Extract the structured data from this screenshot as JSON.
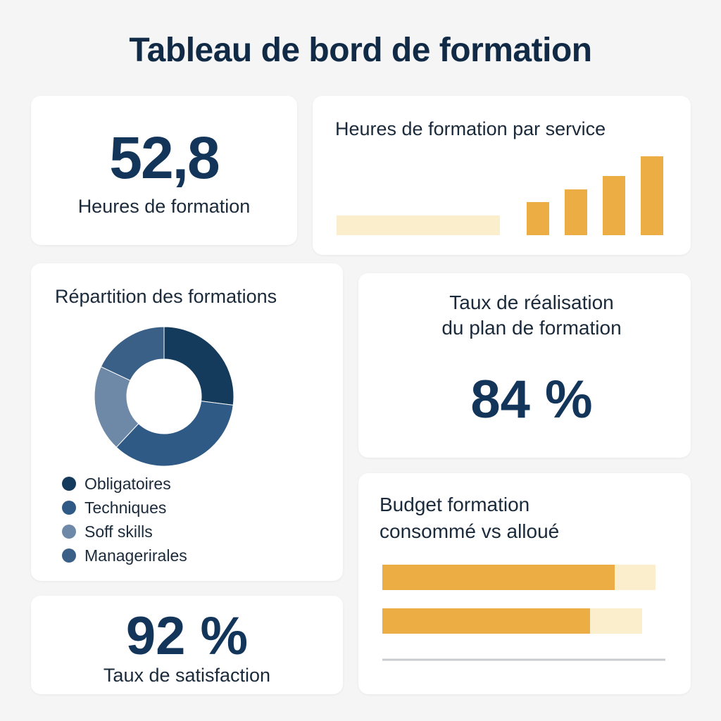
{
  "page": {
    "title": "Tableau de bord de formation"
  },
  "kpi_hours": {
    "value": "52,8",
    "label": "Heures de formation"
  },
  "kpi_completion": {
    "label_line1": "Taux de réalisation",
    "label_line2": "du plan de formation",
    "value": "84 %"
  },
  "kpi_satisfaction": {
    "value": "92 %",
    "label": "Taux de satisfaction"
  },
  "colors": {
    "accent": "#ecad45",
    "accent_light": "#fbeecd",
    "navy": "#143a5c",
    "blue": "#2f5a85",
    "slate": "#6e89a8",
    "blue2": "#3a6088"
  },
  "chart_data": [
    {
      "type": "bar",
      "title": "Heures de formation par service",
      "categories": [
        "",
        "",
        "",
        "",
        ""
      ],
      "values": [
        0.25,
        0.42,
        0.58,
        0.75,
        1.0
      ],
      "note_visual": "first bar is a light horizontal band"
    },
    {
      "type": "pie",
      "title": "Répartition des formations",
      "labels": [
        "Obligatoires",
        "Techniques",
        "Soff skills",
        "Managerirales"
      ],
      "values": [
        27,
        35,
        20,
        18
      ],
      "colors": [
        "#143a5c",
        "#2f5a85",
        "#6e89a8",
        "#3a6088"
      ],
      "donut": true
    },
    {
      "type": "bar",
      "orientation": "horizontal",
      "title": "Budget formation consommé vs alloué",
      "series": [
        {
          "values": [
            0.85,
            0.76
          ]
        },
        {
          "values": [
            1.0,
            0.95
          ]
        }
      ]
    }
  ],
  "labels": {
    "service_title": "Heures de formation par service",
    "repartition_title": "Répartition des formations",
    "budget_line1": "Budget formation",
    "budget_line2": "consommé vs alloué"
  },
  "legend": [
    {
      "label": "Obligatoires",
      "color": "#143a5c"
    },
    {
      "label": "Techniques",
      "color": "#2f5a85"
    },
    {
      "label": "Soff skills",
      "color": "#6e89a8"
    },
    {
      "label": "Managerirales",
      "color": "#3a6088"
    }
  ]
}
